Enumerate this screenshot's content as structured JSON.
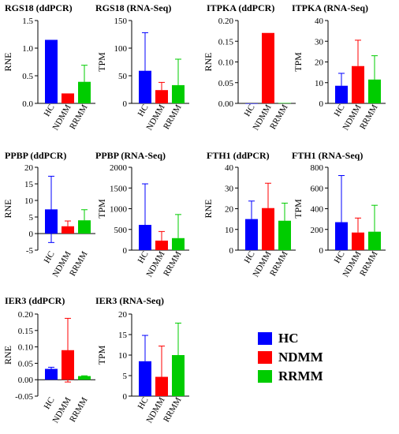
{
  "colors": {
    "HC": "#0000ff",
    "NDMM": "#ff0000",
    "RRMM": "#00cc00"
  },
  "legend": [
    {
      "label": "HC",
      "color": "#0000ff"
    },
    {
      "label": "NDMM",
      "color": "#ff0000"
    },
    {
      "label": "RRMM",
      "color": "#00cc00"
    }
  ],
  "chart_data": [
    {
      "type": "bar",
      "title": "RGS18 (ddPCR)",
      "ylabel": "RNE",
      "categories": [
        "HC",
        "NDMM",
        "RRMM"
      ],
      "values": [
        1.15,
        0.18,
        0.39
      ],
      "errors": [
        0,
        0,
        0.3
      ],
      "ylim": [
        0,
        1.5
      ],
      "ticks": [
        "0.0",
        "0.5",
        "1.0",
        "1.5"
      ],
      "tick_values": [
        0,
        0.5,
        1.0,
        1.5
      ]
    },
    {
      "type": "bar",
      "title": "RGS18 (RNA-Seq)",
      "ylabel": "TPM",
      "categories": [
        "HC",
        "NDMM",
        "RRMM"
      ],
      "values": [
        59,
        24,
        33
      ],
      "errors": [
        69,
        14,
        47
      ],
      "ylim": [
        0,
        150
      ],
      "ticks": [
        "0",
        "50",
        "100",
        "150"
      ],
      "tick_values": [
        0,
        50,
        100,
        150
      ]
    },
    {
      "type": "bar",
      "title": "ITPKA (ddPCR)",
      "ylabel": "RNE",
      "categories": [
        "HC",
        "NDMM",
        "RRMM"
      ],
      "values": [
        0,
        0.17,
        0.001
      ],
      "errors": [
        0,
        0,
        0
      ],
      "ylim": [
        0,
        0.2
      ],
      "ticks": [
        "0.00",
        "0.05",
        "0.10",
        "0.15",
        "0.20"
      ],
      "tick_values": [
        0,
        0.05,
        0.1,
        0.15,
        0.2
      ]
    },
    {
      "type": "bar",
      "title": "ITPKA (RNA-Seq)",
      "ylabel": "TPM",
      "categories": [
        "HC",
        "NDMM",
        "RRMM"
      ],
      "values": [
        8.5,
        18,
        11.5
      ],
      "errors": [
        6,
        12.5,
        11.5
      ],
      "ylim": [
        0,
        40
      ],
      "ticks": [
        "0",
        "10",
        "20",
        "30",
        "40"
      ],
      "tick_values": [
        0,
        10,
        20,
        30,
        40
      ]
    },
    {
      "type": "bar",
      "title": "PPBP (ddPCR)",
      "ylabel": "RNE",
      "categories": [
        "HC",
        "NDMM",
        "RRMM"
      ],
      "values": [
        7.3,
        2.2,
        4
      ],
      "errors": [
        10,
        1.6,
        3.2
      ],
      "lower_error": [
        10,
        0,
        0
      ],
      "ylim": [
        -5,
        20
      ],
      "ticks": [
        "-5",
        "0",
        "5",
        "10",
        "15",
        "20"
      ],
      "tick_values": [
        -5,
        0,
        5,
        10,
        15,
        20
      ]
    },
    {
      "type": "bar",
      "title": "PPBP (RNA-Seq)",
      "ylabel": "TPM",
      "categories": [
        "HC",
        "NDMM",
        "RRMM"
      ],
      "values": [
        610,
        230,
        290
      ],
      "errors": [
        990,
        220,
        570
      ],
      "ylim": [
        0,
        2000
      ],
      "ticks": [
        "0",
        "500",
        "1000",
        "1500",
        "2000"
      ],
      "tick_values": [
        0,
        500,
        1000,
        1500,
        2000
      ]
    },
    {
      "type": "bar",
      "title": "FTH1 (ddPCR)",
      "ylabel": "RNE",
      "categories": [
        "HC",
        "NDMM",
        "RRMM"
      ],
      "values": [
        15,
        20.3,
        14.2
      ],
      "errors": [
        8.7,
        12,
        8.5
      ],
      "ylim": [
        0,
        40
      ],
      "ticks": [
        "0",
        "10",
        "20",
        "30",
        "40"
      ],
      "tick_values": [
        0,
        10,
        20,
        30,
        40
      ]
    },
    {
      "type": "bar",
      "title": "FTH1 (RNA-Seq)",
      "ylabel": "TPM",
      "categories": [
        "HC",
        "NDMM",
        "RRMM"
      ],
      "values": [
        270,
        170,
        178
      ],
      "errors": [
        450,
        140,
        255
      ],
      "ylim": [
        0,
        800
      ],
      "ticks": [
        "0",
        "200",
        "400",
        "600",
        "800"
      ],
      "tick_values": [
        0,
        200,
        400,
        600,
        800
      ]
    },
    {
      "type": "bar",
      "title": "IER3 (ddPCR)",
      "ylabel": "RNE",
      "categories": [
        "HC",
        "NDMM",
        "RRMM"
      ],
      "values": [
        0.033,
        0.09,
        0.011
      ],
      "errors": [
        0.005,
        0.097,
        0.001
      ],
      "lower_error": [
        0,
        0.097,
        0
      ],
      "ylim": [
        -0.05,
        0.2
      ],
      "ticks": [
        "-0.05",
        "0.00",
        "0.05",
        "0.10",
        "0.15",
        "0.20"
      ],
      "tick_values": [
        -0.05,
        0,
        0.05,
        0.1,
        0.15,
        0.2
      ]
    },
    {
      "type": "bar",
      "title": "IER3 (RNA-Seq)",
      "ylabel": "TPM",
      "categories": [
        "HC",
        "NDMM",
        "RRMM"
      ],
      "values": [
        8.5,
        4.7,
        10
      ],
      "errors": [
        6.3,
        7.5,
        7.8
      ],
      "ylim": [
        0,
        20
      ],
      "ticks": [
        "0",
        "5",
        "10",
        "15",
        "20"
      ],
      "tick_values": [
        0,
        5,
        10,
        15,
        20
      ]
    }
  ]
}
